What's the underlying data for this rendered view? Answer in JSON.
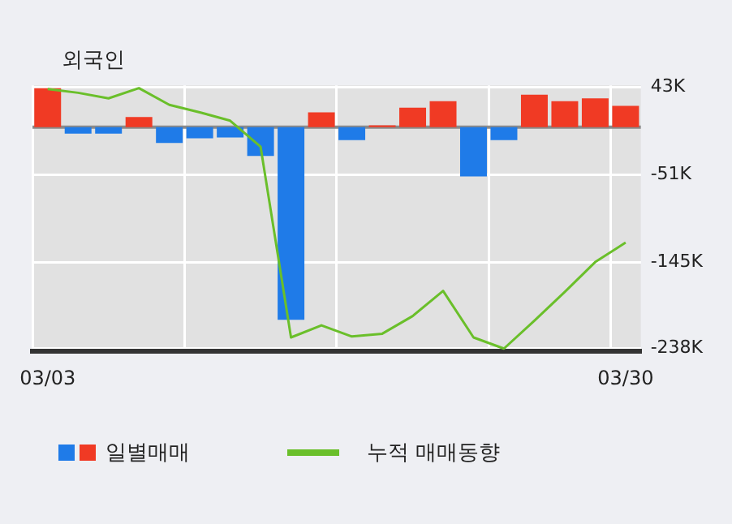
{
  "chart_data": {
    "type": "bar",
    "title": "외국인",
    "categories": [
      "03/03",
      null,
      null,
      null,
      null,
      null,
      null,
      null,
      null,
      null,
      null,
      null,
      null,
      null,
      null,
      null,
      null,
      null,
      null,
      "03/30"
    ],
    "series": [
      {
        "name": "일별매매",
        "values": [
          42,
          -7,
          -7,
          11,
          -17,
          -12,
          -11,
          -31,
          -207,
          16,
          -14,
          2,
          21,
          28,
          -53,
          -14,
          35,
          28,
          31,
          23
        ],
        "colors": [
          "#f03a24",
          "#1f7be8",
          "#1f7be8",
          "#f03a24",
          "#1f7be8",
          "#1f7be8",
          "#1f7be8",
          "#1f7be8",
          "#1f7be8",
          "#f03a24",
          "#1f7be8",
          "#f03a24",
          "#f03a24",
          "#f03a24",
          "#1f7be8",
          "#1f7be8",
          "#f03a24",
          "#f03a24",
          "#f03a24",
          "#f03a24"
        ]
      },
      {
        "name": "누적 매매동향",
        "type": "line",
        "color": "#6abf2a",
        "values": [
          41,
          37,
          31,
          42,
          24,
          16,
          7,
          -21,
          -226,
          -213,
          -225,
          -222,
          -203,
          -176,
          -226,
          -238,
          -208,
          -177,
          -145,
          -124
        ]
      }
    ],
    "ylim": [
      -241,
      45
    ],
    "yticks": [
      {
        "value": 43,
        "label": "43K"
      },
      {
        "value": -51,
        "label": "-51K"
      },
      {
        "value": -145,
        "label": "-145K"
      },
      {
        "value": -238,
        "label": "-238K"
      }
    ],
    "grid": true,
    "legend": "bottom",
    "marker": "none"
  }
}
